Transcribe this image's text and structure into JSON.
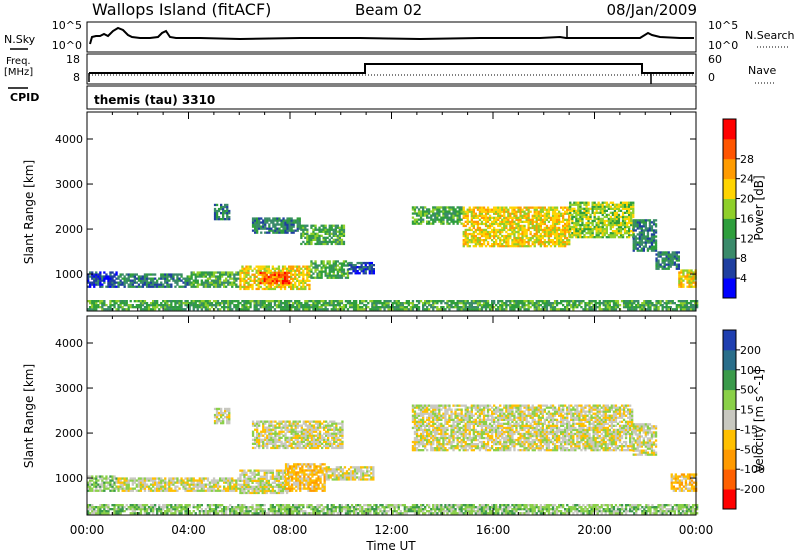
{
  "header": {
    "station": "Wallops Island (fitACF)",
    "beam": "Beam 02",
    "date": "08/Jan/2009"
  },
  "top_panels": {
    "nsky_label": "N.Sky",
    "nsky_ticks": [
      "10^5",
      "10^0"
    ],
    "nsearch_label": "N.Search",
    "nsearch_ticks": [
      "10^5",
      "10^0"
    ],
    "freq_label_1": "Freq.",
    "freq_label_2": "[MHz]",
    "freq_ticks": [
      "18",
      "8"
    ],
    "nave_label": "Nave",
    "nave_ticks": [
      "60",
      "0"
    ],
    "cpid_label": "CPID",
    "cpid_value": "themis (tau) 3310"
  },
  "chart_data": [
    {
      "type": "heatmap",
      "name": "power-panel",
      "xlabel": "Time UT",
      "ylabel": "Slant Range [km]",
      "xlim": [
        0,
        24
      ],
      "ylim": [
        180,
        4600
      ],
      "yticks": [
        "1000",
        "2000",
        "3000",
        "4000"
      ],
      "colorbar_label": "Power [dB]",
      "colorbar_ticks": [
        "4",
        "8",
        "12",
        "16",
        "20",
        "24",
        "28"
      ],
      "colors": [
        "#0000ff",
        "#1f3fa0",
        "#3a8a6a",
        "#2e9e3c",
        "#8fcf2a",
        "#ffd400",
        "#ff9b00",
        "#ff5500",
        "#ff0000"
      ],
      "regions": [
        {
          "t0": 0.0,
          "t1": 1.2,
          "r0": 700,
          "r1": 1050,
          "level": 1
        },
        {
          "t0": 1.2,
          "t1": 4.0,
          "r0": 700,
          "r1": 1000,
          "level": 2
        },
        {
          "t0": 4.0,
          "t1": 6.0,
          "r0": 700,
          "r1": 1050,
          "level": 3
        },
        {
          "t0": 6.0,
          "t1": 8.8,
          "r0": 650,
          "r1": 1150,
          "level": 5
        },
        {
          "t0": 6.8,
          "t1": 8.0,
          "r0": 780,
          "r1": 1050,
          "level": 7
        },
        {
          "t0": 8.8,
          "t1": 10.3,
          "r0": 900,
          "r1": 1300,
          "level": 3
        },
        {
          "t0": 10.3,
          "t1": 11.3,
          "r0": 1000,
          "r1": 1250,
          "level": 1
        },
        {
          "t0": 5.0,
          "t1": 5.6,
          "r0": 2200,
          "r1": 2550,
          "level": 2
        },
        {
          "t0": 6.5,
          "t1": 8.4,
          "r0": 1900,
          "r1": 2250,
          "level": 2
        },
        {
          "t0": 8.4,
          "t1": 10.1,
          "r0": 1650,
          "r1": 2100,
          "level": 3
        },
        {
          "t0": 12.8,
          "t1": 14.8,
          "r0": 2100,
          "r1": 2500,
          "level": 3
        },
        {
          "t0": 14.8,
          "t1": 19.0,
          "r0": 1600,
          "r1": 2500,
          "level": 5
        },
        {
          "t0": 19.0,
          "t1": 21.5,
          "r0": 1800,
          "r1": 2600,
          "level": 4
        },
        {
          "t0": 21.5,
          "t1": 22.4,
          "r0": 1500,
          "r1": 2200,
          "level": 2
        },
        {
          "t0": 22.4,
          "t1": 23.3,
          "r0": 1100,
          "r1": 1500,
          "level": 2
        },
        {
          "t0": 23.3,
          "t1": 24.0,
          "r0": 700,
          "r1": 1100,
          "level": 5
        },
        {
          "t0": 0.0,
          "t1": 24.0,
          "r0": 200,
          "r1": 420,
          "level": 3
        }
      ]
    },
    {
      "type": "heatmap",
      "name": "velocity-panel",
      "xlabel": "Time UT",
      "ylabel": "Slant Range [km]",
      "xlim": [
        0,
        24
      ],
      "ylim": [
        180,
        4600
      ],
      "yticks": [
        "1000",
        "2000",
        "3000",
        "4000"
      ],
      "xticks": [
        "00:00",
        "04:00",
        "08:00",
        "12:00",
        "16:00",
        "20:00",
        "00:00"
      ],
      "colorbar_label": "Velocity [m s^-1]",
      "colorbar_ticks": [
        "200",
        "100",
        "50",
        "15",
        "-15",
        "-50",
        "-100",
        "-200"
      ],
      "colors": [
        "#1f3fb0",
        "#2a6e8a",
        "#3a9a4a",
        "#8ad048",
        "#c8c8c0",
        "#ffc000",
        "#ff9a00",
        "#ff6000",
        "#ff0000"
      ],
      "regions": [
        {
          "t0": 0.0,
          "t1": 1.2,
          "r0": 700,
          "r1": 1050,
          "level": 3
        },
        {
          "t0": 1.2,
          "t1": 6.0,
          "r0": 700,
          "r1": 1000,
          "level": 4
        },
        {
          "t0": 6.0,
          "t1": 8.0,
          "r0": 650,
          "r1": 1150,
          "level": 4
        },
        {
          "t0": 7.8,
          "t1": 9.4,
          "r0": 700,
          "r1": 1300,
          "level": 5
        },
        {
          "t0": 9.4,
          "t1": 11.3,
          "r0": 950,
          "r1": 1250,
          "level": 4
        },
        {
          "t0": 5.0,
          "t1": 5.6,
          "r0": 2200,
          "r1": 2550,
          "level": 4
        },
        {
          "t0": 6.5,
          "t1": 10.1,
          "r0": 1650,
          "r1": 2250,
          "level": 4
        },
        {
          "t0": 12.8,
          "t1": 21.5,
          "r0": 1600,
          "r1": 2600,
          "level": 4
        },
        {
          "t0": 21.5,
          "t1": 22.4,
          "r0": 1500,
          "r1": 2200,
          "level": 4
        },
        {
          "t0": 23.0,
          "t1": 24.0,
          "r0": 700,
          "r1": 1100,
          "level": 5
        },
        {
          "t0": 0.0,
          "t1": 24.0,
          "r0": 200,
          "r1": 420,
          "level": 3
        }
      ]
    }
  ]
}
